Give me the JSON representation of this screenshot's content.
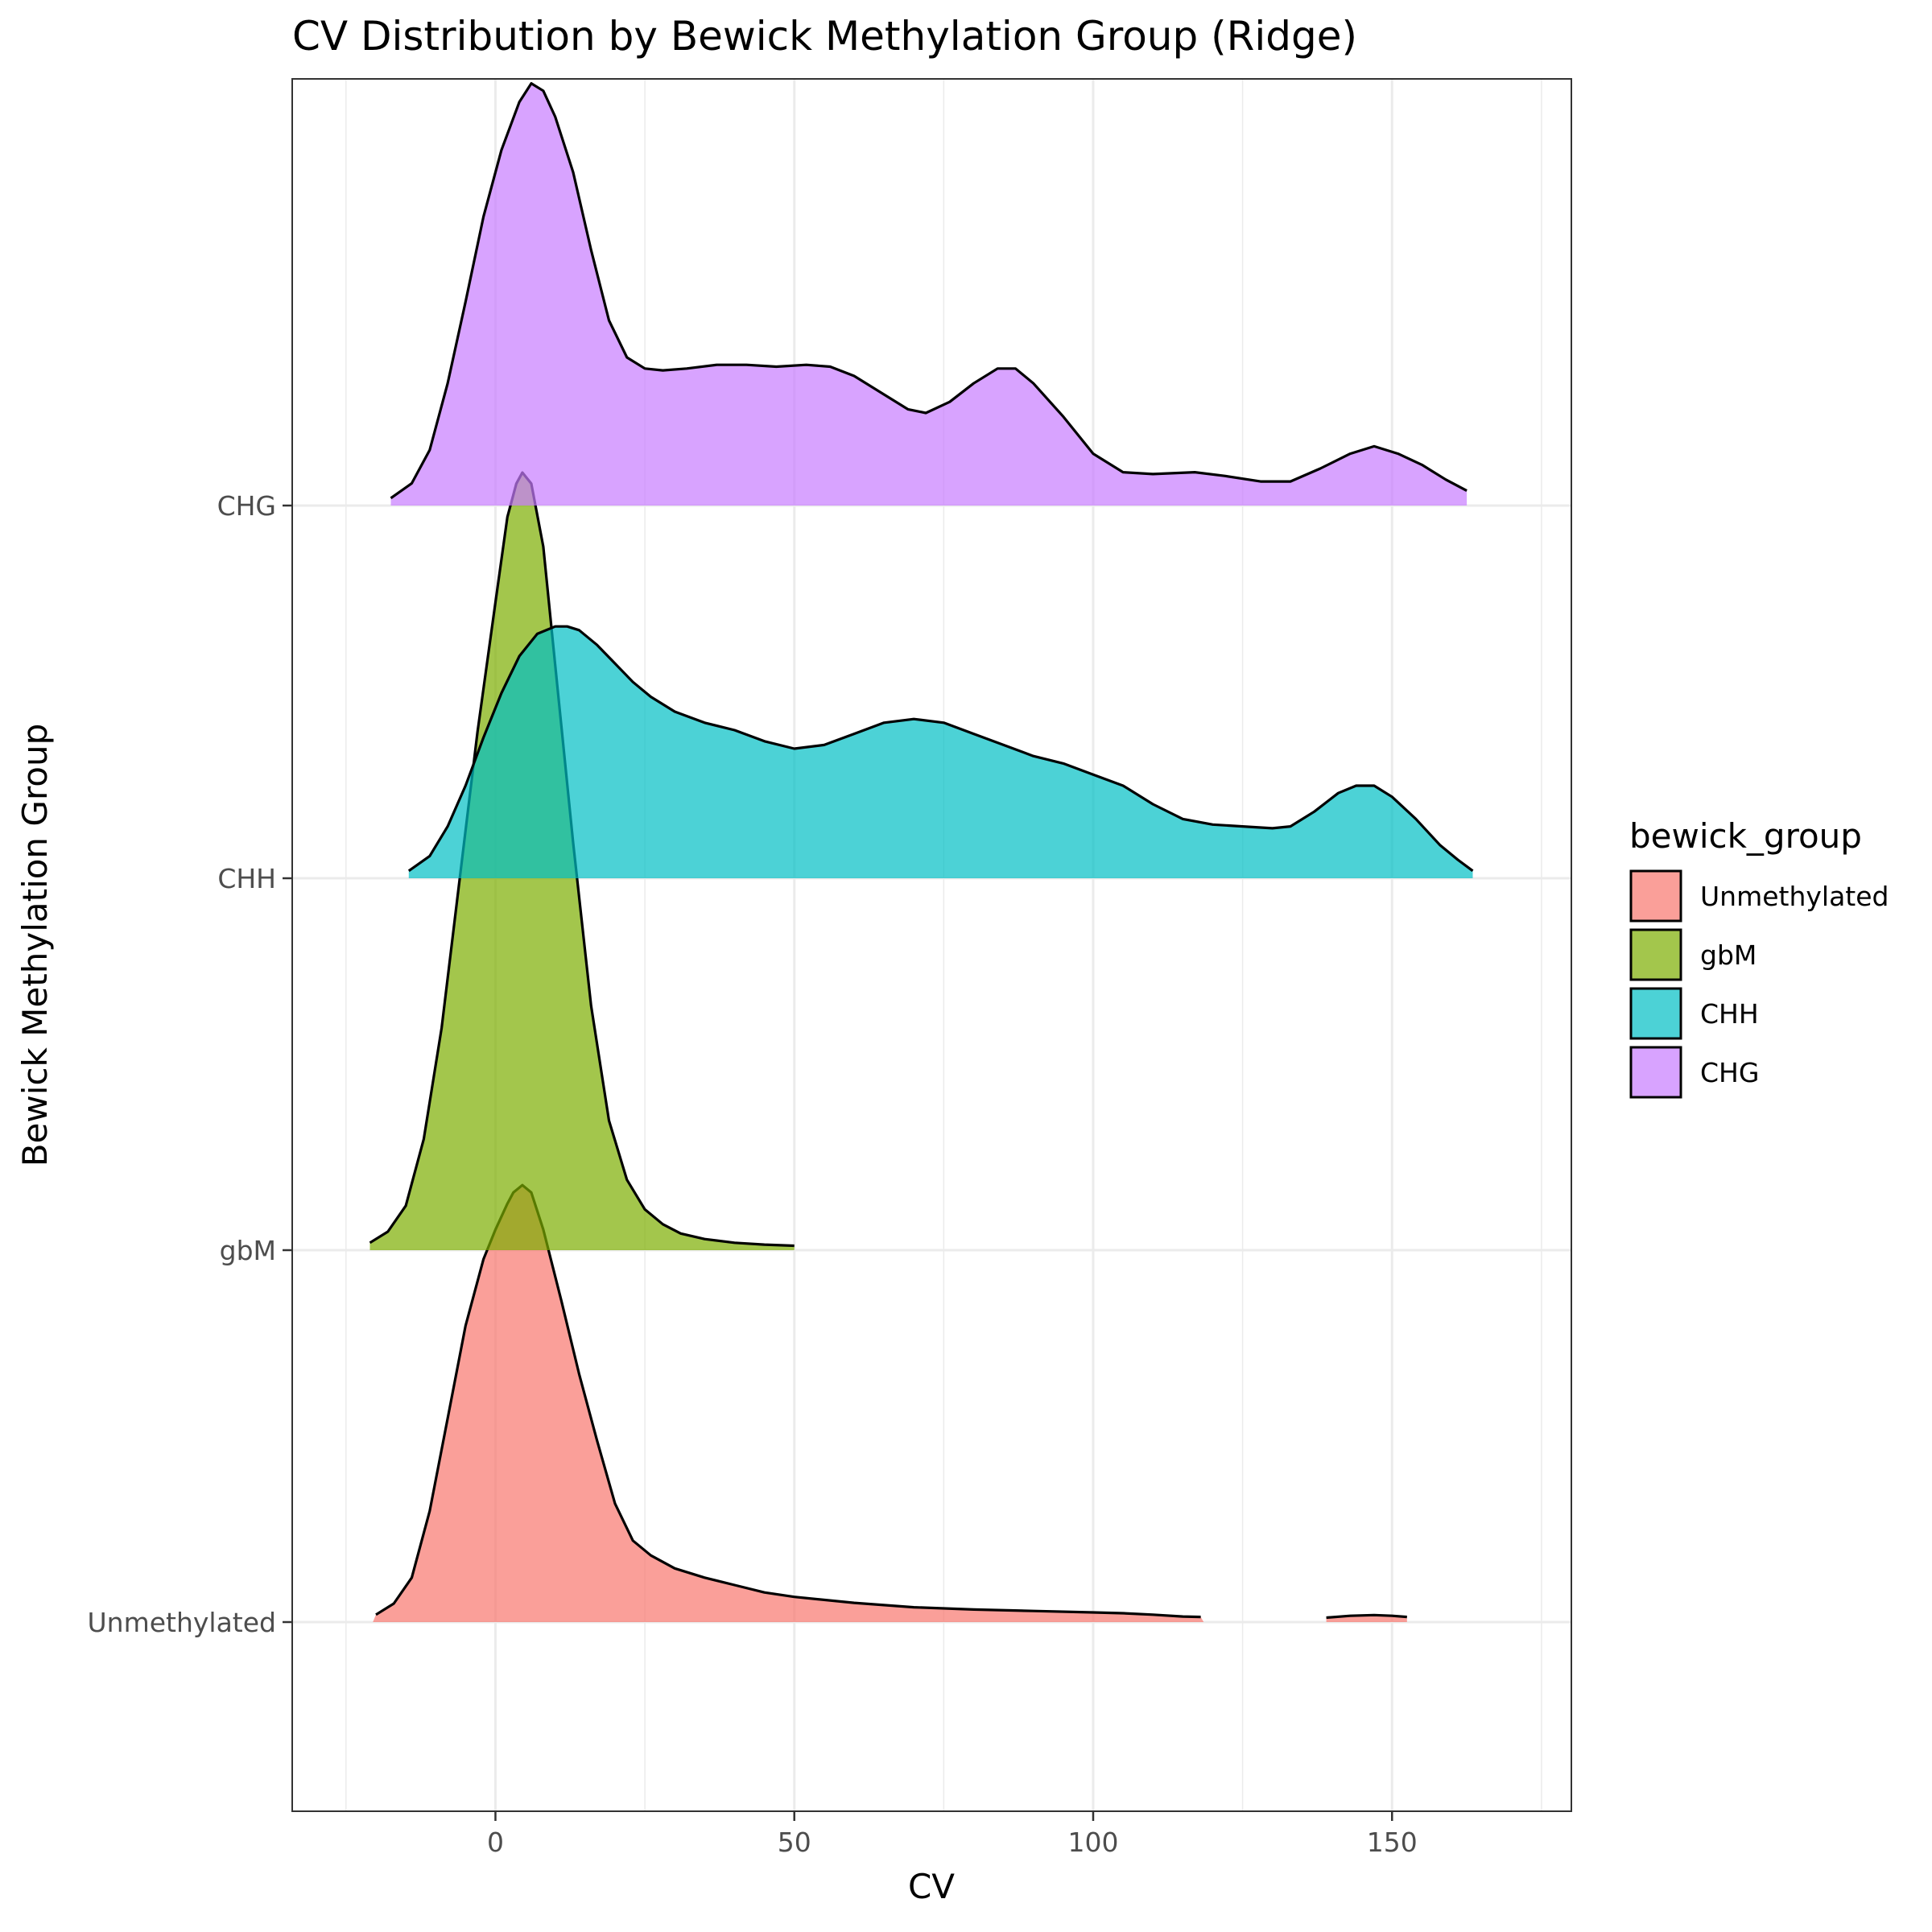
{
  "chart_data": {
    "type": "ridgeline",
    "title": "CV Distribution by Bewick Methylation Group (Ridge)",
    "xlabel": "CV",
    "ylabel": "Bewick Methylation Group",
    "xlim": [
      -34,
      180
    ],
    "x_ticks": [
      0,
      50,
      100,
      150
    ],
    "x_tick_labels": [
      "0",
      "50",
      "100",
      "150"
    ],
    "y_categories": [
      "Unmethylated",
      "gbM",
      "CHH",
      "CHG"
    ],
    "grid": true,
    "legend": {
      "title": "bewick_group",
      "position": "right",
      "entries": [
        "Unmethylated",
        "gbM",
        "CHH",
        "CHG"
      ]
    },
    "fill_alpha": 0.7,
    "series": [
      {
        "name": "Unmethylated",
        "color": "#F8766D",
        "curves": [
          {
            "points": [
              [
                -20.5,
                0.0
              ],
              [
                -20,
                0.02
              ],
              [
                -17,
                0.05
              ],
              [
                -14,
                0.12
              ],
              [
                -11,
                0.3
              ],
              [
                -8,
                0.55
              ],
              [
                -5,
                0.8
              ],
              [
                -2,
                0.98
              ],
              [
                0,
                1.06
              ],
              [
                2,
                1.13
              ],
              [
                3,
                1.16
              ],
              [
                4.5,
                1.18
              ],
              [
                6,
                1.16
              ],
              [
                8,
                1.06
              ],
              [
                11,
                0.87
              ],
              [
                14,
                0.67
              ],
              [
                17,
                0.49
              ],
              [
                20,
                0.32
              ],
              [
                23,
                0.22
              ],
              [
                26,
                0.18
              ],
              [
                30,
                0.145
              ],
              [
                35,
                0.12
              ],
              [
                40,
                0.1
              ],
              [
                45,
                0.08
              ],
              [
                50,
                0.068
              ],
              [
                60,
                0.052
              ],
              [
                70,
                0.04
              ],
              [
                80,
                0.034
              ],
              [
                90,
                0.03
              ],
              [
                100,
                0.026
              ],
              [
                105,
                0.024
              ],
              [
                110,
                0.02
              ],
              [
                115,
                0.015
              ],
              [
                118,
                0.014
              ],
              [
                118.5,
                0.0
              ]
            ]
          },
          {
            "points": [
              [
                139,
                0.0
              ],
              [
                139,
                0.012
              ],
              [
                143,
                0.017
              ],
              [
                147,
                0.019
              ],
              [
                150,
                0.017
              ],
              [
                152.5,
                0.014
              ],
              [
                152.5,
                0.0
              ]
            ]
          }
        ]
      },
      {
        "name": "gbM",
        "color": "#7CAE00",
        "curves": [
          {
            "points": [
              [
                -21,
                0.0
              ],
              [
                -21,
                0.02
              ],
              [
                -18,
                0.05
              ],
              [
                -15,
                0.12
              ],
              [
                -12,
                0.3
              ],
              [
                -9,
                0.6
              ],
              [
                -6,
                1.0
              ],
              [
                -3,
                1.4
              ],
              [
                0,
                1.75
              ],
              [
                2,
                1.98
              ],
              [
                3.5,
                2.07
              ],
              [
                4.5,
                2.1
              ],
              [
                6,
                2.07
              ],
              [
                8,
                1.9
              ],
              [
                10,
                1.58
              ],
              [
                13,
                1.1
              ],
              [
                16,
                0.66
              ],
              [
                19,
                0.35
              ],
              [
                22,
                0.19
              ],
              [
                25,
                0.11
              ],
              [
                28,
                0.07
              ],
              [
                31,
                0.045
              ],
              [
                35,
                0.03
              ],
              [
                40,
                0.02
              ],
              [
                45,
                0.015
              ],
              [
                50,
                0.012
              ],
              [
                50,
                0.0
              ]
            ]
          }
        ]
      },
      {
        "name": "CHH",
        "color": "#00BFC4",
        "curves": [
          {
            "points": [
              [
                -14.5,
                0.0
              ],
              [
                -14.5,
                0.02
              ],
              [
                -11,
                0.06
              ],
              [
                -8,
                0.14
              ],
              [
                -5,
                0.25
              ],
              [
                -2,
                0.38
              ],
              [
                1,
                0.5
              ],
              [
                4,
                0.6
              ],
              [
                7,
                0.66
              ],
              [
                10,
                0.68
              ],
              [
                12,
                0.68
              ],
              [
                14,
                0.67
              ],
              [
                17,
                0.63
              ],
              [
                20,
                0.58
              ],
              [
                23,
                0.53
              ],
              [
                26,
                0.49
              ],
              [
                30,
                0.45
              ],
              [
                35,
                0.42
              ],
              [
                40,
                0.4
              ],
              [
                45,
                0.37
              ],
              [
                50,
                0.35
              ],
              [
                55,
                0.36
              ],
              [
                60,
                0.39
              ],
              [
                65,
                0.42
              ],
              [
                70,
                0.43
              ],
              [
                75,
                0.42
              ],
              [
                80,
                0.39
              ],
              [
                85,
                0.36
              ],
              [
                90,
                0.33
              ],
              [
                95,
                0.31
              ],
              [
                100,
                0.28
              ],
              [
                105,
                0.25
              ],
              [
                110,
                0.2
              ],
              [
                115,
                0.16
              ],
              [
                120,
                0.145
              ],
              [
                125,
                0.14
              ],
              [
                130,
                0.135
              ],
              [
                133,
                0.14
              ],
              [
                137,
                0.18
              ],
              [
                141,
                0.23
              ],
              [
                144,
                0.25
              ],
              [
                147,
                0.25
              ],
              [
                150,
                0.22
              ],
              [
                154,
                0.16
              ],
              [
                158,
                0.09
              ],
              [
                161,
                0.05
              ],
              [
                163.5,
                0.02
              ],
              [
                163.5,
                0.0
              ]
            ]
          }
        ]
      },
      {
        "name": "CHG",
        "color": "#C77CFF",
        "curves": [
          {
            "points": [
              [
                -17.5,
                0.0
              ],
              [
                -17.5,
                0.02
              ],
              [
                -14,
                0.06
              ],
              [
                -11,
                0.15
              ],
              [
                -8,
                0.33
              ],
              [
                -5,
                0.55
              ],
              [
                -2,
                0.78
              ],
              [
                1,
                0.96
              ],
              [
                4,
                1.09
              ],
              [
                6,
                1.14
              ],
              [
                8,
                1.12
              ],
              [
                10,
                1.05
              ],
              [
                13,
                0.9
              ],
              [
                16,
                0.69
              ],
              [
                19,
                0.5
              ],
              [
                22,
                0.4
              ],
              [
                25,
                0.37
              ],
              [
                28,
                0.365
              ],
              [
                32,
                0.37
              ],
              [
                37,
                0.38
              ],
              [
                42,
                0.38
              ],
              [
                47,
                0.375
              ],
              [
                52,
                0.38
              ],
              [
                56,
                0.375
              ],
              [
                60,
                0.35
              ],
              [
                65,
                0.3
              ],
              [
                69,
                0.26
              ],
              [
                72,
                0.25
              ],
              [
                76,
                0.28
              ],
              [
                80,
                0.33
              ],
              [
                84,
                0.37
              ],
              [
                87,
                0.37
              ],
              [
                90,
                0.33
              ],
              [
                95,
                0.24
              ],
              [
                100,
                0.14
              ],
              [
                105,
                0.09
              ],
              [
                110,
                0.085
              ],
              [
                117,
                0.09
              ],
              [
                122,
                0.08
              ],
              [
                128,
                0.065
              ],
              [
                133,
                0.065
              ],
              [
                138,
                0.1
              ],
              [
                143,
                0.14
              ],
              [
                147,
                0.16
              ],
              [
                151,
                0.14
              ],
              [
                155,
                0.11
              ],
              [
                159,
                0.07
              ],
              [
                162.5,
                0.04
              ],
              [
                162.5,
                0.0
              ]
            ]
          }
        ]
      }
    ]
  }
}
